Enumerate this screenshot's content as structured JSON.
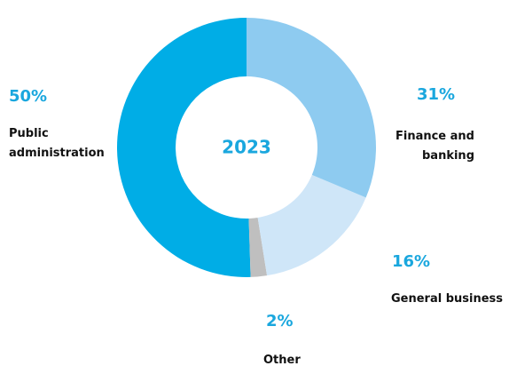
{
  "chart_data": {
    "type": "donut",
    "center_label": "2023",
    "categories": [
      "Finance and banking",
      "General business",
      "Other",
      "Public administration"
    ],
    "values": [
      31,
      16,
      2,
      50
    ],
    "value_labels": [
      "31%",
      "16%",
      "2%",
      "50%"
    ],
    "colors": [
      "#8ecbf0",
      "#cfe6f8",
      "#bfbfbf",
      "#00ade6"
    ],
    "label_color": "#1aa7de"
  }
}
